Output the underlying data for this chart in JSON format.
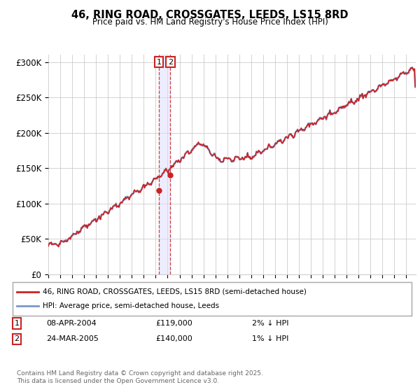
{
  "title": "46, RING ROAD, CROSSGATES, LEEDS, LS15 8RD",
  "subtitle": "Price paid vs. HM Land Registry's House Price Index (HPI)",
  "ylabel_ticks": [
    "£0",
    "£50K",
    "£100K",
    "£150K",
    "£200K",
    "£250K",
    "£300K"
  ],
  "ytick_values": [
    0,
    50000,
    100000,
    150000,
    200000,
    250000,
    300000
  ],
  "ylim": [
    0,
    310000
  ],
  "xlim_start": 1995.0,
  "xlim_end": 2025.8,
  "hpi_color": "#7799cc",
  "price_color": "#cc2222",
  "sale1_date": "08-APR-2004",
  "sale1_price": 119000,
  "sale1_label": "2% ↓ HPI",
  "sale2_date": "24-MAR-2005",
  "sale2_price": 140000,
  "sale2_label": "1% ↓ HPI",
  "sale1_x": 2004.27,
  "sale2_x": 2005.23,
  "legend_line1": "46, RING ROAD, CROSSGATES, LEEDS, LS15 8RD (semi-detached house)",
  "legend_line2": "HPI: Average price, semi-detached house, Leeds",
  "footer": "Contains HM Land Registry data © Crown copyright and database right 2025.\nThis data is licensed under the Open Government Licence v3.0.",
  "background_color": "#ffffff",
  "grid_color": "#cccccc",
  "annotation1": "1",
  "annotation2": "2",
  "shade_color": "#ddddff"
}
